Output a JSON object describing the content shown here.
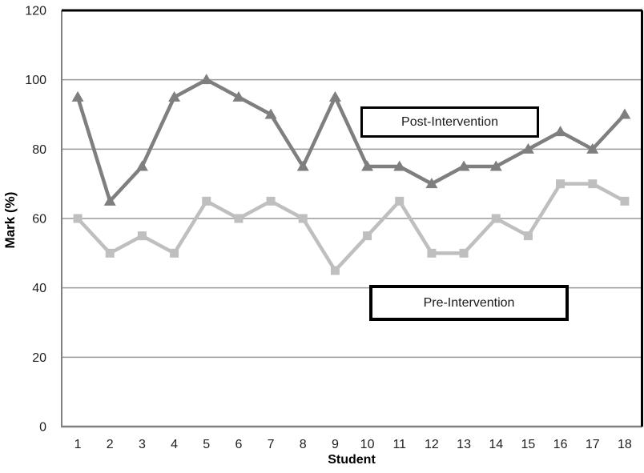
{
  "chart_data": {
    "type": "line",
    "title": "",
    "xlabel": "Student",
    "ylabel": "Mark (%)",
    "x": [
      1,
      2,
      3,
      4,
      5,
      6,
      7,
      8,
      9,
      10,
      11,
      12,
      13,
      14,
      15,
      16,
      17,
      18
    ],
    "series": [
      {
        "name": "Post-Intervention",
        "marker": "triangle",
        "color": "#7f7f7f",
        "values": [
          95,
          65,
          75,
          95,
          100,
          95,
          90,
          75,
          95,
          75,
          75,
          70,
          75,
          75,
          80,
          85,
          80,
          90
        ]
      },
      {
        "name": "Pre-Intervention",
        "marker": "square",
        "color": "#bfbfbf",
        "values": [
          60,
          50,
          55,
          50,
          65,
          60,
          65,
          60,
          45,
          55,
          65,
          50,
          50,
          60,
          55,
          70,
          70,
          65
        ]
      }
    ],
    "ylim": [
      0,
      120
    ],
    "yticks": [
      0,
      20,
      40,
      60,
      80,
      100,
      120
    ],
    "grid": "horizontal",
    "legend_position": "none",
    "annotations": [
      {
        "text": "Post-Intervention"
      },
      {
        "text": "Pre-Intervention"
      }
    ],
    "colors": {
      "gridline": "#999999",
      "axis_line": "#808080",
      "plot_border": "#000000",
      "tick_label": "#1f1f1f"
    }
  }
}
